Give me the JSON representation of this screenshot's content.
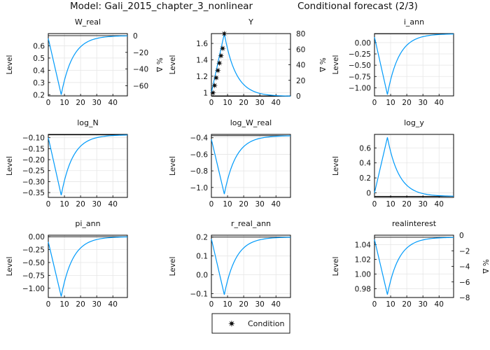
{
  "figure": {
    "title_left": "Model: Gali_2015_chapter_3_nonlinear",
    "title_right": "Conditional forecast  (2/3)",
    "legend_label": "Condition",
    "series_color": "#009AFA"
  },
  "chart_data": [
    {
      "type": "line",
      "title": "W_real",
      "ylabel": "Level",
      "xlim": [
        0,
        49
      ],
      "ylim": [
        0.19,
        0.7
      ],
      "xticks": [
        0,
        10,
        20,
        30,
        40
      ],
      "yticks": [
        0.2,
        0.3,
        0.4,
        0.5,
        0.6
      ],
      "start": 0.66,
      "trough_x": 8,
      "trough": 0.2,
      "end": 0.68,
      "steady_state": 0.683,
      "y2label": "% Δ",
      "y2lim": [
        -72.2,
        2.5
      ],
      "y2ticks": [
        -60,
        -40,
        -20,
        0
      ],
      "conditions": []
    },
    {
      "type": "line",
      "title": "Y",
      "ylabel": "Level",
      "xlim": [
        0,
        49
      ],
      "ylim": [
        0.96,
        1.72
      ],
      "xticks": [
        0,
        10,
        20,
        30,
        40
      ],
      "yticks": [
        1.0,
        1.2,
        1.4,
        1.6
      ],
      "start": 1.0,
      "peak_x": 8,
      "peak": 1.72,
      "end": 0.96,
      "steady_state": 0.955,
      "y2label": "% Δ",
      "y2lim": [
        0,
        80
      ],
      "y2ticks": [
        0,
        20,
        40,
        60,
        80
      ],
      "conditions": [
        {
          "x": 1,
          "y": 1.0
        },
        {
          "x": 2,
          "y": 1.09
        },
        {
          "x": 3,
          "y": 1.18
        },
        {
          "x": 4,
          "y": 1.27
        },
        {
          "x": 5,
          "y": 1.36
        },
        {
          "x": 6,
          "y": 1.45
        },
        {
          "x": 7,
          "y": 1.54
        },
        {
          "x": 8,
          "y": 1.72
        }
      ]
    },
    {
      "type": "line",
      "title": "i_ann",
      "ylabel": "Level",
      "xlim": [
        0,
        49
      ],
      "ylim": [
        -1.18,
        0.2
      ],
      "xticks": [
        0,
        10,
        20,
        30,
        40
      ],
      "yticks": [
        0.0,
        -0.25,
        -0.5,
        -0.75,
        -1.0
      ],
      "ytick_labels": [
        "0.00",
        "−0.25",
        "−0.50",
        "−0.75",
        "−1.00"
      ],
      "start": 0.12,
      "trough_x": 8,
      "trough": -1.15,
      "end": 0.17,
      "steady_state": 0.195,
      "conditions": []
    },
    {
      "type": "line",
      "title": "log_N",
      "ylabel": "Level",
      "xlim": [
        0,
        49
      ],
      "ylim": [
        -0.372,
        -0.085
      ],
      "xticks": [
        0,
        10,
        20,
        30,
        40
      ],
      "yticks": [
        -0.1,
        -0.15,
        -0.2,
        -0.25,
        -0.3,
        -0.35
      ],
      "ytick_labels": [
        "−0.10",
        "−0.15",
        "−0.20",
        "−0.25",
        "−0.30",
        "−0.35"
      ],
      "start": -0.1,
      "trough_x": 8,
      "trough": -0.362,
      "end": -0.09,
      "steady_state": -0.087,
      "conditions": []
    },
    {
      "type": "line",
      "title": "log_W_real",
      "ylabel": "Level",
      "xlim": [
        0,
        49
      ],
      "ylim": [
        -1.12,
        -0.36
      ],
      "xticks": [
        0,
        10,
        20,
        30,
        40
      ],
      "yticks": [
        -0.4,
        -0.6,
        -0.8,
        -1.0
      ],
      "ytick_labels": [
        "−0.4",
        "−0.6",
        "−0.8",
        "−1.0"
      ],
      "start": -0.42,
      "trough_x": 8,
      "trough": -1.08,
      "end": -0.39,
      "steady_state": -0.375,
      "conditions": []
    },
    {
      "type": "line",
      "title": "log_y",
      "ylabel": "Level",
      "xlim": [
        0,
        49
      ],
      "ylim": [
        -0.06,
        0.78
      ],
      "xticks": [
        0,
        10,
        20,
        30,
        40
      ],
      "yticks": [
        0.0,
        0.2,
        0.4,
        0.6
      ],
      "start": 0.0,
      "peak_x": 8,
      "peak": 0.74,
      "end": -0.04,
      "steady_state": -0.046,
      "conditions": []
    },
    {
      "type": "line",
      "title": "pi_ann",
      "ylabel": "Level",
      "xlim": [
        0,
        49
      ],
      "ylim": [
        -1.18,
        0.03
      ],
      "xticks": [
        0,
        10,
        20,
        30,
        40
      ],
      "yticks": [
        0.0,
        -0.25,
        -0.5,
        -0.75,
        -1.0
      ],
      "ytick_labels": [
        "0.00",
        "−0.25",
        "−0.50",
        "−0.75",
        "−1.00"
      ],
      "start": -0.1,
      "trough_x": 8,
      "trough": -1.16,
      "end": -0.02,
      "steady_state": 0.0,
      "conditions": []
    },
    {
      "type": "line",
      "title": "r_real_ann",
      "ylabel": "Level",
      "xlim": [
        0,
        49
      ],
      "ylim": [
        -0.12,
        0.21
      ],
      "xticks": [
        0,
        10,
        20,
        30,
        40
      ],
      "yticks": [
        0.2,
        0.1,
        0.0,
        -0.1
      ],
      "ytick_labels": [
        "0.2",
        "0.1",
        "0.0",
        "−0.1"
      ],
      "start": 0.19,
      "trough_x": 8,
      "trough": -0.105,
      "end": 0.198,
      "steady_state": 0.2,
      "conditions": []
    },
    {
      "type": "line",
      "title": "realinterest",
      "ylabel": "Level",
      "xlim": [
        0,
        49
      ],
      "ylim": [
        0.968,
        1.053
      ],
      "xticks": [
        0,
        10,
        20,
        30,
        40
      ],
      "yticks": [
        1.04,
        1.02,
        1.0,
        0.98
      ],
      "ytick_labels": [
        "1.04",
        "1.02",
        "1.00",
        "0.98"
      ],
      "start": 1.047,
      "trough_x": 8,
      "trough": 0.972,
      "end": 1.05,
      "steady_state": 1.0502,
      "y2label": "% Δ",
      "y2lim": [
        -8,
        0
      ],
      "y2ticks": [
        0,
        -2,
        -4,
        -6,
        -8
      ],
      "y2tick_labels": [
        "0",
        "−2",
        "−4",
        "−6",
        "−8"
      ],
      "conditions": []
    }
  ]
}
